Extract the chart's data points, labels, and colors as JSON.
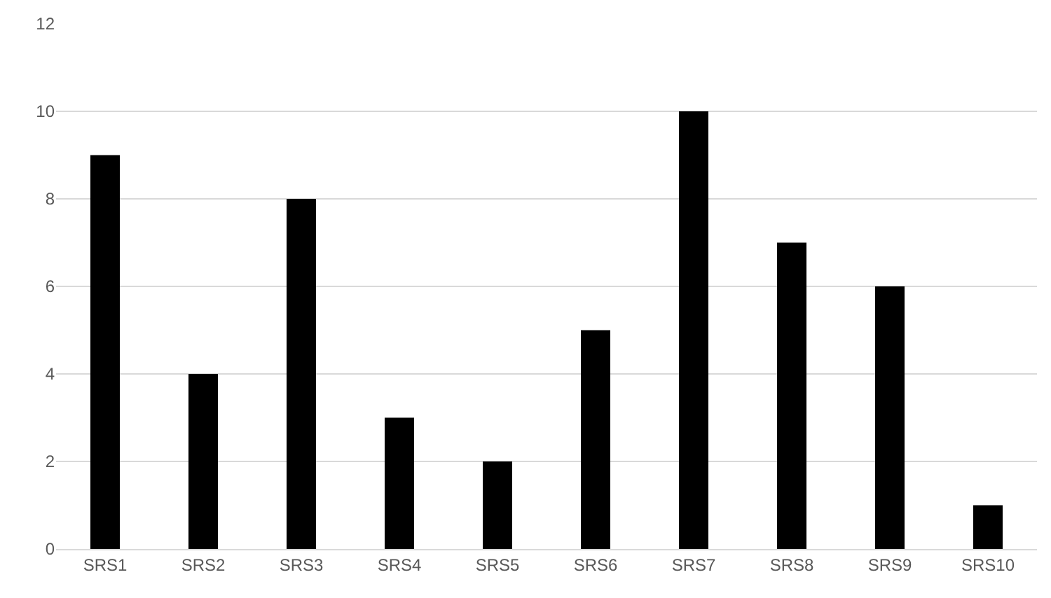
{
  "chart_data": {
    "type": "bar",
    "categories": [
      "SRS1",
      "SRS2",
      "SRS3",
      "SRS4",
      "SRS5",
      "SRS6",
      "SRS7",
      "SRS8",
      "SRS9",
      "SRS10"
    ],
    "values": [
      9,
      4,
      8,
      3,
      2,
      5,
      10,
      7,
      6,
      1
    ],
    "color": "#000000",
    "ylim": [
      0,
      12
    ],
    "yticks": [
      0,
      2,
      4,
      6,
      8,
      10,
      12
    ],
    "grid": "y"
  }
}
